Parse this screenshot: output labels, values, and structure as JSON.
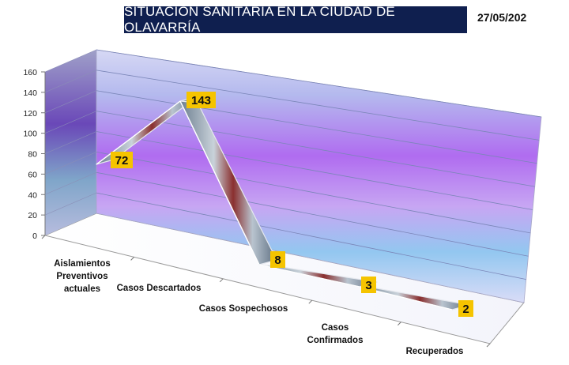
{
  "header": {
    "title": "SITUACIÓN SANITARIA EN LA CIUDAD DE OLAVARRÍA",
    "date": "27/05/202"
  },
  "colors": {
    "title_bg": "#0f1f4f",
    "data_label_bg": "#f5c400"
  },
  "chart_data": {
    "type": "line",
    "style": "3d-ribbon",
    "title": "SITUACIÓN SANITARIA EN LA CIUDAD DE OLAVARRÍA",
    "xlabel": "",
    "ylabel": "",
    "ylim": [
      0,
      160
    ],
    "yticks": [
      "0",
      "20",
      "40",
      "60",
      "80",
      "100",
      "120",
      "140",
      "160"
    ],
    "grid": true,
    "legend": "none",
    "categories": [
      [
        "Aislamientos",
        "Preventivos",
        "actuales"
      ],
      [
        "Casos Descartados"
      ],
      [
        "Casos Sospechosos"
      ],
      [
        "Casos",
        "Confirmados"
      ],
      [
        "Recuperados"
      ]
    ],
    "values": [
      72,
      143,
      8,
      3,
      2
    ],
    "data_labels": [
      "72",
      "143",
      "8",
      "3",
      "2"
    ]
  }
}
